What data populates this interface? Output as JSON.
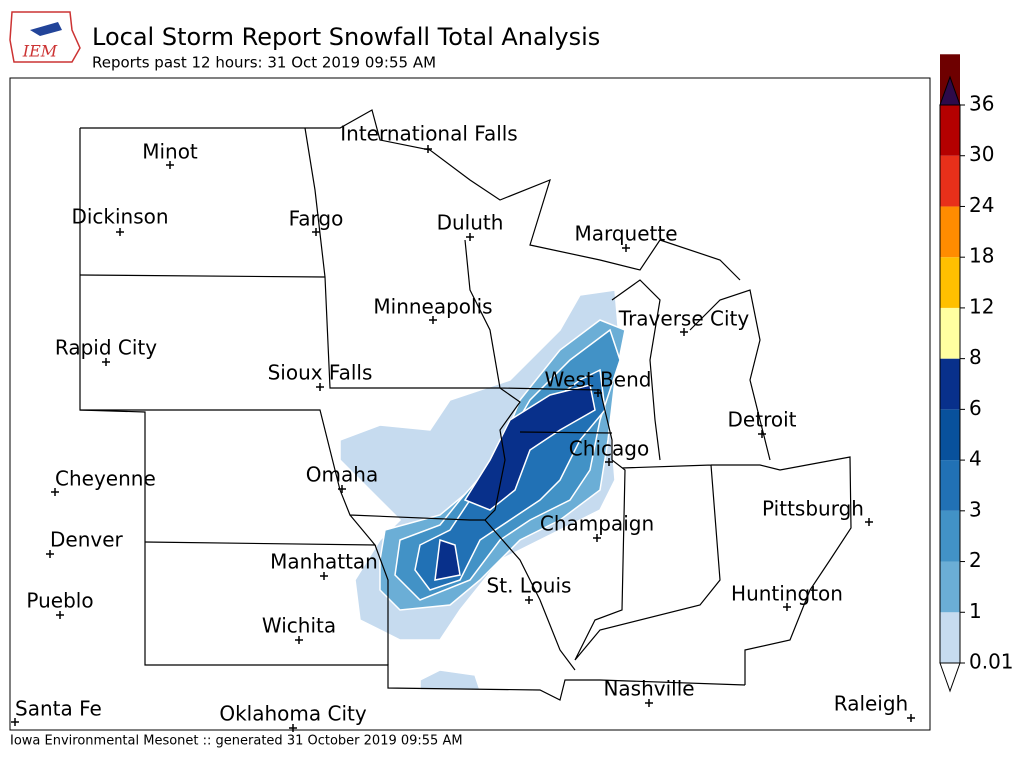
{
  "header": {
    "logo": "IEM",
    "title": "Local Storm Report Snowfall Total Analysis",
    "subtitle": "Reports past 12 hours: 31 Oct 2019 09:55 AM"
  },
  "cities": [
    "Minot",
    "International Falls",
    "Dickinson",
    "Fargo",
    "Duluth",
    "Marquette",
    "Minneapolis",
    "Traverse City",
    "Rapid City",
    "Sioux Falls",
    "West Bend",
    "Detroit",
    "Chicago",
    "Cheyenne",
    "Omaha",
    "Pittsburgh",
    "Champaign",
    "Denver",
    "Manhattan",
    "St. Louis",
    "Huntington",
    "Pueblo",
    "Wichita",
    "Nashville",
    "Raleigh",
    "Santa Fe",
    "Oklahoma City"
  ],
  "colorbar": {
    "levels": [
      0.01,
      1,
      2,
      3,
      4,
      6,
      8,
      12,
      18,
      24,
      30,
      36
    ],
    "colors": [
      "#c6dbef",
      "#6baed6",
      "#4292c6",
      "#2171b5",
      "#08519c",
      "#08308b",
      "#ffffa0",
      "#ffc000",
      "#ff8c00",
      "#e8301a",
      "#b40000",
      "#6e0000"
    ],
    "over_color": "#2d0a4a"
  },
  "footer": "Iowa Environmental Mesonet :: generated 31 October 2019 09:55 AM"
}
